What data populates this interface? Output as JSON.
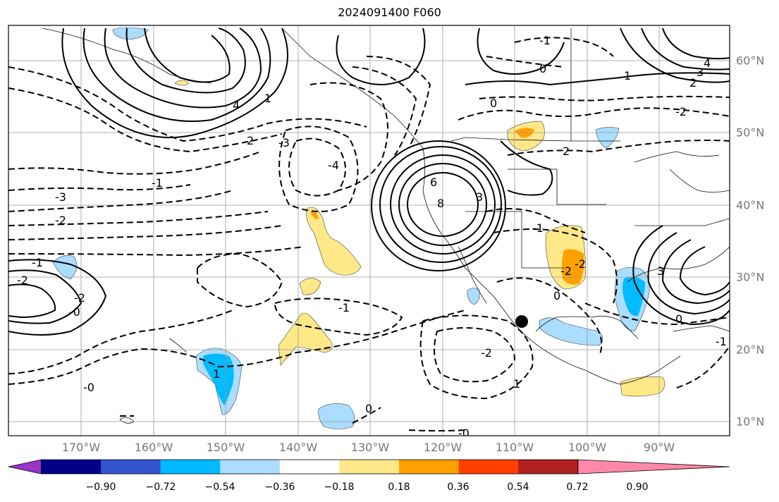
{
  "title": "2024091400 F060",
  "lon_labels": [
    "170°W",
    "160°W",
    "150°W",
    "140°W",
    "130°W",
    "120°W",
    "110°W",
    "100°W",
    "90°W"
  ],
  "lat_labels": [
    "60°N",
    "50°N",
    "40°N",
    "30°N",
    "20°N",
    "10°N"
  ],
  "colorbar": {
    "colors": [
      "#9933cc",
      "#000088",
      "#3355cc",
      "#00bbff",
      "#aaddff",
      "#ffffff",
      "#ffe888",
      "#ffa000",
      "#ff4000",
      "#b02020",
      "#ff88aa"
    ],
    "labels": [
      "−0.90",
      "−0.72",
      "−0.54",
      "−0.36",
      "−0.18",
      "0.18",
      "0.36",
      "0.54",
      "0.72",
      "0.90"
    ]
  },
  "contour_labels": [
    "-1",
    "0",
    "1",
    "2",
    "3",
    "4",
    "6",
    "8",
    "-2",
    "-3",
    "-4",
    "-0",
    "0",
    "2",
    "1",
    "-1",
    "-2",
    "3",
    "4",
    "2",
    "-2",
    "-1",
    "0",
    "-2",
    "-2",
    "0",
    "0",
    "-0",
    "-1",
    "-3",
    "-2",
    "-1",
    "-2",
    "-0",
    "1",
    "1",
    "3",
    "-1"
  ]
}
